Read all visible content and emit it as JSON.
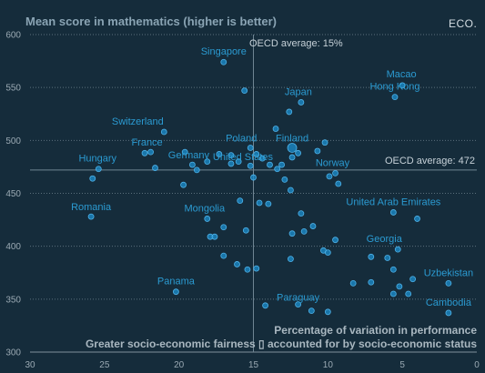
{
  "logo": "ECO.",
  "chart_data": {
    "type": "scatter",
    "title": "Mean score in mathematics (higher is better)",
    "xlabel_line1": "Percentage of variation in performance",
    "xlabel_line2": "Greater socio-economic fairness ▯ accounted for by socio-economic status",
    "x_axis_reversed": true,
    "xlim": [
      30,
      0
    ],
    "ylim": [
      300,
      600
    ],
    "x_ticks": [
      "30",
      "25",
      "20",
      "15",
      "10",
      "5",
      "0"
    ],
    "y_ticks": [
      "300",
      "350",
      "400",
      "450",
      "500",
      "550",
      "600"
    ],
    "grid": "horizontal dotted",
    "oecd_average_x_label": "OECD average: 15%",
    "oecd_average_y_label": "OECD average: 472",
    "oecd_average_x": 15,
    "oecd_average_y": 472,
    "points": [
      {
        "x": 17.0,
        "y": 574,
        "label": "Singapore"
      },
      {
        "x": 5.5,
        "y": 541,
        "label": "Hong Kong"
      },
      {
        "x": 5.0,
        "y": 552,
        "label": "Macao"
      },
      {
        "x": 11.8,
        "y": 536,
        "label": "Japan"
      },
      {
        "x": 21.0,
        "y": 508,
        "label": "Switzerland"
      },
      {
        "x": 15.6,
        "y": 547
      },
      {
        "x": 12.6,
        "y": 527
      },
      {
        "x": 13.5,
        "y": 511
      },
      {
        "x": 10.7,
        "y": 490
      },
      {
        "x": 10.2,
        "y": 498
      },
      {
        "x": 15.2,
        "y": 493,
        "label": "Poland"
      },
      {
        "x": 12.4,
        "y": 493,
        "label": "Finland"
      },
      {
        "x": 16.5,
        "y": 478,
        "label": "United States"
      },
      {
        "x": 9.5,
        "y": 469,
        "label": "Norway"
      },
      {
        "x": 19.1,
        "y": 477,
        "label": "Germany"
      },
      {
        "x": 21.9,
        "y": 489,
        "label": "France"
      },
      {
        "x": 25.4,
        "y": 473,
        "label": "Hungary"
      },
      {
        "x": 25.8,
        "y": 464
      },
      {
        "x": 22.3,
        "y": 488
      },
      {
        "x": 21.6,
        "y": 474
      },
      {
        "x": 19.6,
        "y": 489
      },
      {
        "x": 18.8,
        "y": 472
      },
      {
        "x": 18.1,
        "y": 480
      },
      {
        "x": 17.3,
        "y": 487
      },
      {
        "x": 16.5,
        "y": 486
      },
      {
        "x": 16.0,
        "y": 480
      },
      {
        "x": 14.8,
        "y": 487
      },
      {
        "x": 14.4,
        "y": 483
      },
      {
        "x": 13.9,
        "y": 477
      },
      {
        "x": 13.4,
        "y": 473
      },
      {
        "x": 13.1,
        "y": 477
      },
      {
        "x": 12.4,
        "y": 484
      },
      {
        "x": 12.0,
        "y": 488
      },
      {
        "x": 15.2,
        "y": 476
      },
      {
        "x": 15.0,
        "y": 465
      },
      {
        "x": 12.9,
        "y": 463
      },
      {
        "x": 12.5,
        "y": 453
      },
      {
        "x": 9.9,
        "y": 466
      },
      {
        "x": 9.3,
        "y": 459
      },
      {
        "x": 15.9,
        "y": 443
      },
      {
        "x": 14.6,
        "y": 441
      },
      {
        "x": 14.0,
        "y": 440
      },
      {
        "x": 19.7,
        "y": 458
      },
      {
        "x": 25.9,
        "y": 428,
        "label": "Romania"
      },
      {
        "x": 5.6,
        "y": 432,
        "label": "United Arab Emirates"
      },
      {
        "x": 4.0,
        "y": 426
      },
      {
        "x": 18.1,
        "y": 426,
        "label": "Mongolia"
      },
      {
        "x": 17.0,
        "y": 418
      },
      {
        "x": 17.9,
        "y": 409
      },
      {
        "x": 17.6,
        "y": 409
      },
      {
        "x": 15.5,
        "y": 415
      },
      {
        "x": 11.8,
        "y": 431
      },
      {
        "x": 11.0,
        "y": 419
      },
      {
        "x": 12.4,
        "y": 412
      },
      {
        "x": 11.6,
        "y": 414
      },
      {
        "x": 9.5,
        "y": 406
      },
      {
        "x": 10.3,
        "y": 396
      },
      {
        "x": 10.0,
        "y": 394
      },
      {
        "x": 5.3,
        "y": 397,
        "label": "Georgia"
      },
      {
        "x": 7.1,
        "y": 390
      },
      {
        "x": 6.0,
        "y": 389
      },
      {
        "x": 5.6,
        "y": 378
      },
      {
        "x": 17.0,
        "y": 391
      },
      {
        "x": 16.1,
        "y": 383
      },
      {
        "x": 15.4,
        "y": 378
      },
      {
        "x": 14.8,
        "y": 379
      },
      {
        "x": 12.5,
        "y": 388
      },
      {
        "x": 8.3,
        "y": 365
      },
      {
        "x": 7.1,
        "y": 366
      },
      {
        "x": 5.2,
        "y": 362
      },
      {
        "x": 4.6,
        "y": 355
      },
      {
        "x": 5.6,
        "y": 355
      },
      {
        "x": 4.3,
        "y": 369
      },
      {
        "x": 1.9,
        "y": 365,
        "label": "Uzbekistan"
      },
      {
        "x": 20.2,
        "y": 357,
        "label": "Panama"
      },
      {
        "x": 14.2,
        "y": 344
      },
      {
        "x": 12.0,
        "y": 345,
        "label": "Paraguay"
      },
      {
        "x": 11.1,
        "y": 339
      },
      {
        "x": 10.0,
        "y": 338
      },
      {
        "x": 1.9,
        "y": 337,
        "label": "Cambodia"
      }
    ]
  }
}
